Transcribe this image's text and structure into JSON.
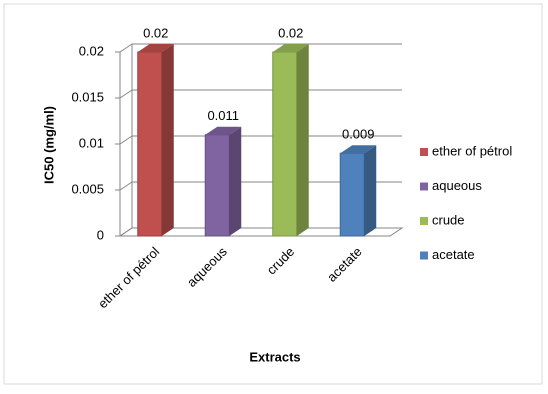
{
  "chart_data": {
    "type": "bar3d",
    "categories": [
      "ether of pétrol",
      "aqueous",
      "crude",
      "acetate"
    ],
    "values": [
      0.02,
      0.011,
      0.02,
      0.009
    ],
    "colors": [
      "#c0504d",
      "#8064a2",
      "#9bbb59",
      "#4f81bd"
    ],
    "ylim": [
      0,
      0.02
    ],
    "yticks": [
      0,
      0.005,
      0.01,
      0.015,
      0.02
    ],
    "y_label": "IC50 (mg/ml)",
    "x_label": "Extracts",
    "grid": true,
    "legend": "right"
  }
}
